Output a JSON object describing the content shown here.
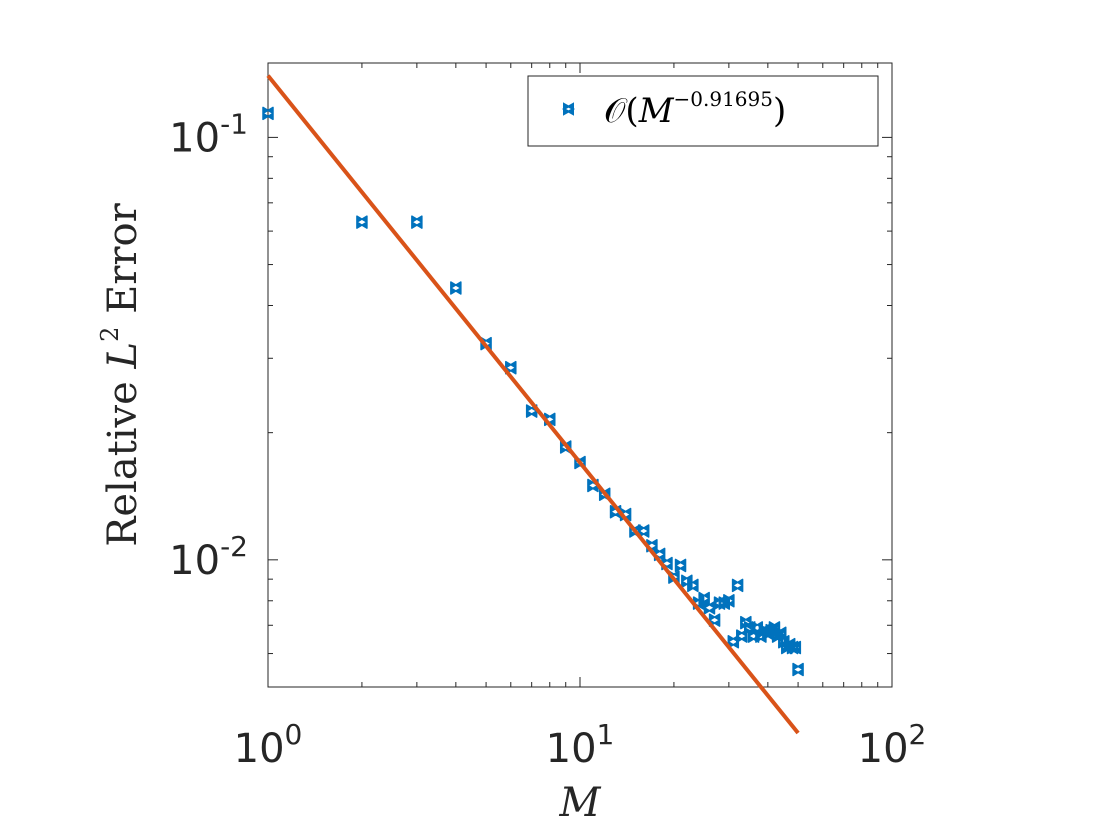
{
  "chart_data": {
    "type": "scatter",
    "xscale": "log",
    "yscale": "log",
    "xlim": [
      1,
      100
    ],
    "ylim": [
      0.005,
      0.15
    ],
    "xticks": [
      1,
      10,
      100
    ],
    "xtick_labels": [
      {
        "base": "10",
        "exp": "0"
      },
      {
        "base": "10",
        "exp": "1"
      },
      {
        "base": "10",
        "exp": "2"
      }
    ],
    "yticks": [
      0.01,
      0.1
    ],
    "ytick_labels": [
      {
        "base": "10",
        "exp": "-2"
      },
      {
        "base": "10",
        "exp": "-1"
      }
    ],
    "xlabel": "M",
    "ylabel": {
      "prefix": "Relative ",
      "var": "L",
      "sup": "2",
      "suffix": " Error"
    },
    "grid": false,
    "legend": {
      "position": "top-right",
      "entries": [
        {
          "prefix": "𝒪(",
          "var": "M",
          "sup": "−0.91695",
          "suffix": ")"
        }
      ]
    },
    "series": [
      {
        "kind": "scatter",
        "marker": "bowtie",
        "color": "#0072BD",
        "points": [
          [
            1,
            0.114
          ],
          [
            2,
            0.063
          ],
          [
            3,
            0.063
          ],
          [
            4,
            0.044
          ],
          [
            5,
            0.0325
          ],
          [
            6,
            0.0285
          ],
          [
            7,
            0.0225
          ],
          [
            8,
            0.0215
          ],
          [
            9,
            0.0185
          ],
          [
            10,
            0.017
          ],
          [
            11,
            0.015
          ],
          [
            12,
            0.0143
          ],
          [
            13,
            0.013
          ],
          [
            14,
            0.0128
          ],
          [
            15,
            0.0117
          ],
          [
            16,
            0.0117
          ],
          [
            17,
            0.0108
          ],
          [
            18,
            0.0103
          ],
          [
            19,
            0.0098
          ],
          [
            20,
            0.0091
          ],
          [
            21,
            0.0097
          ],
          [
            22,
            0.0089
          ],
          [
            23,
            0.0087
          ],
          [
            24,
            0.0079
          ],
          [
            25,
            0.0081
          ],
          [
            26,
            0.0077
          ],
          [
            27,
            0.0072
          ],
          [
            28,
            0.0079
          ],
          [
            29,
            0.0079
          ],
          [
            30,
            0.008
          ],
          [
            31,
            0.0064
          ],
          [
            32,
            0.0087
          ],
          [
            33,
            0.0066
          ],
          [
            34,
            0.0071
          ],
          [
            35,
            0.0069
          ],
          [
            36,
            0.0066
          ],
          [
            37,
            0.0069
          ],
          [
            38,
            0.0066
          ],
          [
            39,
            0.0068
          ],
          [
            40,
            0.0067
          ],
          [
            41,
            0.0068
          ],
          [
            42,
            0.0069
          ],
          [
            43,
            0.0066
          ],
          [
            44,
            0.0067
          ],
          [
            45,
            0.0064
          ],
          [
            46,
            0.0062
          ],
          [
            47,
            0.0063
          ],
          [
            48,
            0.0062
          ],
          [
            49,
            0.0062
          ],
          [
            50,
            0.0055
          ]
        ]
      },
      {
        "kind": "line",
        "color": "#D95319",
        "points": [
          [
            1,
            0.14
          ],
          [
            50,
            0.00389
          ]
        ]
      }
    ]
  }
}
